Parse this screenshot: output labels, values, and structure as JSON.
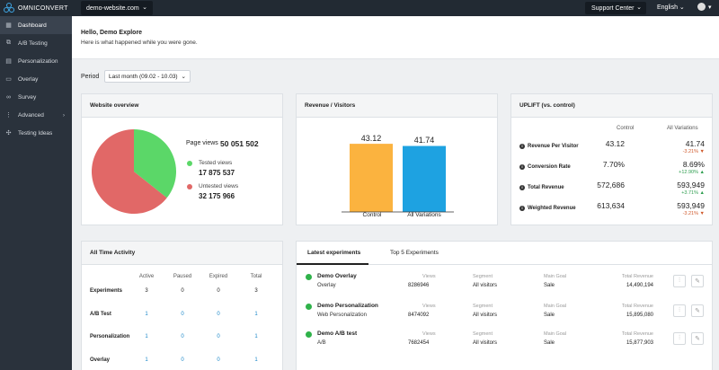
{
  "topbar": {
    "brand": "OMNICONVERT",
    "site": "demo-website.com",
    "support": "Support Center",
    "language": "English",
    "user_chevron": "▾"
  },
  "sidebar": {
    "items": [
      {
        "label": "Dashboard",
        "icon": "dashboard-icon",
        "glyph": "▦"
      },
      {
        "label": "A/B Testing",
        "icon": "ab-testing-icon",
        "glyph": "⧉"
      },
      {
        "label": "Personalization",
        "icon": "personalization-icon",
        "glyph": "▤"
      },
      {
        "label": "Overlay",
        "icon": "overlay-icon",
        "glyph": "▭"
      },
      {
        "label": "Survey",
        "icon": "survey-icon",
        "glyph": "∞"
      },
      {
        "label": "Advanced",
        "icon": "advanced-icon",
        "glyph": "⋮",
        "arrow": "›"
      },
      {
        "label": "Testing Ideas",
        "icon": "testing-ideas-icon",
        "glyph": "✣"
      }
    ]
  },
  "header": {
    "greeting": "Hello, Demo Explore",
    "subtitle": "Here is what happened while you were gone."
  },
  "period": {
    "label": "Period",
    "value": "Last month (09.02 - 10.03)"
  },
  "website_overview": {
    "title": "Website overview",
    "page_views_label": "Page views",
    "page_views": "50 051 502",
    "tested_label": "Tested views",
    "tested": "17 875 537",
    "untested_label": "Untested views",
    "untested": "32 175 966",
    "colors": {
      "tested": "#5bd768",
      "untested": "#e16867"
    }
  },
  "chart_data": {
    "type": "bar",
    "title": "Revenue / Visitors",
    "categories": [
      "Control",
      "All Variations"
    ],
    "values": [
      43.12,
      41.74
    ],
    "colors": [
      "#fbb33f",
      "#1ea2e1"
    ],
    "ylim": [
      0,
      50
    ]
  },
  "uplift": {
    "title": "UPLIFT (vs. control)",
    "col_control": "Control",
    "col_variations": "All Variations",
    "rows": [
      {
        "label": "Revenue Per Visitor",
        "control": "43.12",
        "variations": "41.74",
        "change": "-3.21%",
        "dir": "▼"
      },
      {
        "label": "Conversion Rate",
        "control": "7.70%",
        "variations": "8.69%",
        "change": "+12.90%",
        "dir": "▲"
      },
      {
        "label": "Total Revenue",
        "control": "572,686",
        "variations": "593,949",
        "change": "+3.71%",
        "dir": "▲"
      },
      {
        "label": "Weighted Revenue",
        "control": "613,634",
        "variations": "593,949",
        "change": "-3.21%",
        "dir": "▼"
      }
    ]
  },
  "all_time": {
    "title": "All Time Activity",
    "columns": [
      "Active",
      "Paused",
      "Expired",
      "Total"
    ],
    "rows": [
      {
        "label": "Experiments",
        "values": [
          "3",
          "0",
          "0",
          "3"
        ]
      },
      {
        "label": "A/B Test",
        "values": [
          "1",
          "0",
          "0",
          "1"
        ]
      },
      {
        "label": "Personalization",
        "values": [
          "1",
          "0",
          "0",
          "1"
        ]
      },
      {
        "label": "Overlay",
        "values": [
          "1",
          "0",
          "0",
          "1"
        ]
      }
    ]
  },
  "experiments": {
    "tab_latest": "Latest experiments",
    "tab_top": "Top 5 Experiments",
    "col_views": "Views",
    "col_segment": "Segment",
    "col_goal": "Main Goal",
    "col_revenue": "Total Revenue",
    "items": [
      {
        "name": "Demo Overlay",
        "type": "Overlay",
        "views": "8286946",
        "segment": "All visitors",
        "goal": "Sale",
        "revenue": "14,490,194"
      },
      {
        "name": "Demo Personalization",
        "type": "Web Personalization",
        "views": "8474092",
        "segment": "All visitors",
        "goal": "Sale",
        "revenue": "15,895,080"
      },
      {
        "name": "Demo A/B test",
        "type": "A/B",
        "views": "7682454",
        "segment": "All visitors",
        "goal": "Sale",
        "revenue": "15,877,903"
      }
    ]
  }
}
